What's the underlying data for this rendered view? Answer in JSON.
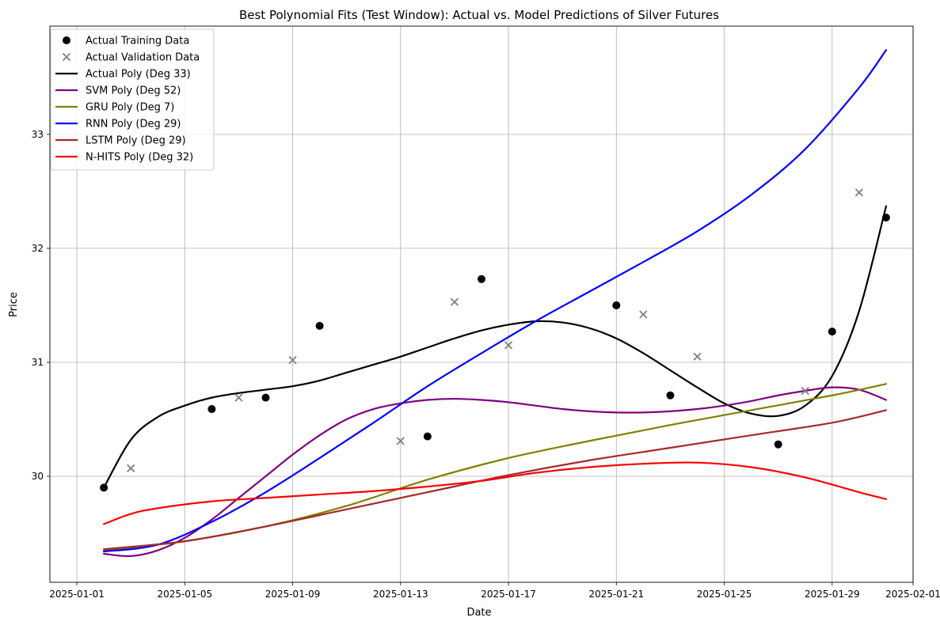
{
  "chart_data": {
    "type": "line",
    "title": "Best Polynomial Fits (Test Window): Actual vs. Model Predictions of Silver Futures",
    "xlabel": "Date",
    "ylabel": "Price",
    "x_date_range": [
      "2024-12-31",
      "2025-02-01"
    ],
    "ylim": [
      29.07,
      33.95
    ],
    "x_ticks": [
      "2025-01-01",
      "2025-01-05",
      "2025-01-09",
      "2025-01-13",
      "2025-01-17",
      "2025-01-21",
      "2025-01-25",
      "2025-01-29",
      "2025-02-01"
    ],
    "y_ticks": [
      30,
      31,
      32,
      33
    ],
    "grid": true,
    "legend_placement": "top-left",
    "training_points": {
      "name": "Actual Training Data",
      "color": "#000000",
      "points": [
        {
          "x": "2025-01-02",
          "y": 29.9
        },
        {
          "x": "2025-01-06",
          "y": 30.59
        },
        {
          "x": "2025-01-08",
          "y": 30.69
        },
        {
          "x": "2025-01-10",
          "y": 31.32
        },
        {
          "x": "2025-01-14",
          "y": 30.35
        },
        {
          "x": "2025-01-16",
          "y": 31.73
        },
        {
          "x": "2025-01-21",
          "y": 31.5
        },
        {
          "x": "2025-01-23",
          "y": 30.71
        },
        {
          "x": "2025-01-27",
          "y": 30.28
        },
        {
          "x": "2025-01-29",
          "y": 31.27
        },
        {
          "x": "2025-01-31",
          "y": 32.27
        }
      ]
    },
    "validation_points": {
      "name": "Actual Validation Data",
      "color": "#808080",
      "points": [
        {
          "x": "2025-01-03",
          "y": 30.07
        },
        {
          "x": "2025-01-07",
          "y": 30.69
        },
        {
          "x": "2025-01-09",
          "y": 31.02
        },
        {
          "x": "2025-01-13",
          "y": 30.31
        },
        {
          "x": "2025-01-15",
          "y": 31.53
        },
        {
          "x": "2025-01-17",
          "y": 31.15
        },
        {
          "x": "2025-01-22",
          "y": 31.42
        },
        {
          "x": "2025-01-24",
          "y": 31.05
        },
        {
          "x": "2025-01-28",
          "y": 30.75
        },
        {
          "x": "2025-01-30",
          "y": 32.49
        }
      ]
    },
    "series": [
      {
        "name": "Actual Poly (Deg 33)",
        "color": "#000000",
        "x": [
          "2025-01-02",
          "2025-01-03",
          "2025-01-04",
          "2025-01-05",
          "2025-01-06",
          "2025-01-07",
          "2025-01-08",
          "2025-01-09",
          "2025-01-10",
          "2025-01-11",
          "2025-01-12",
          "2025-01-13",
          "2025-01-14",
          "2025-01-15",
          "2025-01-16",
          "2025-01-17",
          "2025-01-18",
          "2025-01-19",
          "2025-01-20",
          "2025-01-21",
          "2025-01-22",
          "2025-01-23",
          "2025-01-24",
          "2025-01-25",
          "2025-01-26",
          "2025-01-27",
          "2025-01-28",
          "2025-01-29",
          "2025-01-30",
          "2025-01-31"
        ],
        "y": [
          29.9,
          30.32,
          30.52,
          30.62,
          30.69,
          30.73,
          30.76,
          30.79,
          30.84,
          30.91,
          30.98,
          31.05,
          31.13,
          31.21,
          31.28,
          31.33,
          31.36,
          31.35,
          31.3,
          31.21,
          31.08,
          30.93,
          30.78,
          30.64,
          30.55,
          30.53,
          30.62,
          30.88,
          31.45,
          32.37
        ]
      },
      {
        "name": "SVM Poly (Deg 52)",
        "color": "#800080",
        "x": [
          "2025-01-02",
          "2025-01-03",
          "2025-01-04",
          "2025-01-05",
          "2025-01-06",
          "2025-01-07",
          "2025-01-08",
          "2025-01-09",
          "2025-01-10",
          "2025-01-11",
          "2025-01-12",
          "2025-01-13",
          "2025-01-14",
          "2025-01-15",
          "2025-01-16",
          "2025-01-17",
          "2025-01-18",
          "2025-01-19",
          "2025-01-20",
          "2025-01-21",
          "2025-01-22",
          "2025-01-23",
          "2025-01-24",
          "2025-01-25",
          "2025-01-26",
          "2025-01-27",
          "2025-01-28",
          "2025-01-29",
          "2025-01-30",
          "2025-01-31"
        ],
        "y": [
          29.32,
          29.3,
          29.35,
          29.46,
          29.62,
          29.81,
          30.0,
          30.19,
          30.36,
          30.5,
          30.59,
          30.64,
          30.67,
          30.68,
          30.67,
          30.65,
          30.62,
          30.59,
          30.57,
          30.56,
          30.56,
          30.57,
          30.59,
          30.62,
          30.66,
          30.71,
          30.75,
          30.78,
          30.76,
          30.67
        ]
      },
      {
        "name": "GRU Poly (Deg 7)",
        "color": "#808000",
        "x": [
          "2025-01-02",
          "2025-01-05",
          "2025-01-08",
          "2025-01-11",
          "2025-01-14",
          "2025-01-17",
          "2025-01-20",
          "2025-01-23",
          "2025-01-26",
          "2025-01-29",
          "2025-01-31"
        ],
        "y": [
          29.35,
          29.43,
          29.56,
          29.74,
          29.97,
          30.16,
          30.31,
          30.45,
          30.58,
          30.71,
          30.81
        ]
      },
      {
        "name": "RNN Poly (Deg 29)",
        "color": "#0000ff",
        "x": [
          "2025-01-02",
          "2025-01-04",
          "2025-01-06",
          "2025-01-08",
          "2025-01-10",
          "2025-01-12",
          "2025-01-14",
          "2025-01-16",
          "2025-01-18",
          "2025-01-20",
          "2025-01-22",
          "2025-01-24",
          "2025-01-26",
          "2025-01-28",
          "2025-01-30",
          "2025-01-31"
        ],
        "y": [
          29.34,
          29.4,
          29.6,
          29.86,
          30.16,
          30.47,
          30.79,
          31.08,
          31.36,
          31.62,
          31.88,
          32.15,
          32.47,
          32.87,
          33.41,
          33.74
        ]
      },
      {
        "name": "LSTM Poly (Deg 29)",
        "color": "#a52a2a",
        "x": [
          "2025-01-02",
          "2025-01-05",
          "2025-01-08",
          "2025-01-11",
          "2025-01-14",
          "2025-01-17",
          "2025-01-20",
          "2025-01-23",
          "2025-01-26",
          "2025-01-29",
          "2025-01-31"
        ],
        "y": [
          29.36,
          29.43,
          29.56,
          29.71,
          29.86,
          30.01,
          30.14,
          30.25,
          30.36,
          30.47,
          30.58
        ]
      },
      {
        "name": "N-HITS Poly (Deg 32)",
        "color": "#ff0000",
        "x": [
          "2025-01-02",
          "2025-01-03",
          "2025-01-04",
          "2025-01-06",
          "2025-01-08",
          "2025-01-10",
          "2025-01-12",
          "2025-01-14",
          "2025-01-16",
          "2025-01-18",
          "2025-01-20",
          "2025-01-22",
          "2025-01-24",
          "2025-01-26",
          "2025-01-28",
          "2025-01-30",
          "2025-01-31"
        ],
        "y": [
          29.58,
          29.67,
          29.72,
          29.78,
          29.81,
          29.84,
          29.87,
          29.91,
          29.96,
          30.03,
          30.08,
          30.11,
          30.12,
          30.08,
          29.99,
          29.86,
          29.8
        ]
      }
    ]
  }
}
